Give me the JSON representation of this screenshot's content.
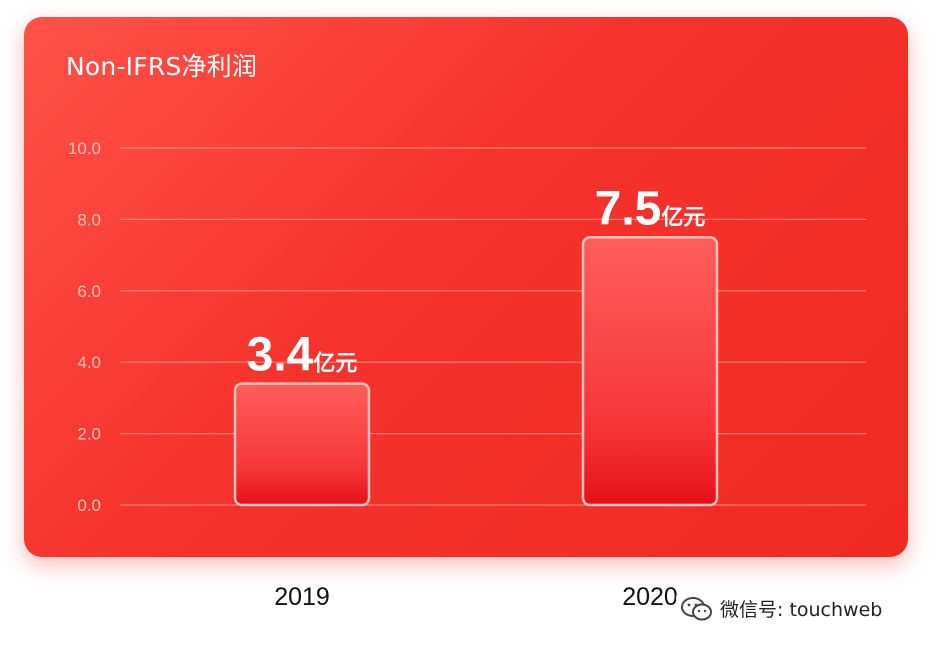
{
  "chart_data": {
    "type": "bar",
    "title": "Non-IFRS净利润",
    "categories": [
      "2019",
      "2020"
    ],
    "values": [
      3.4,
      7.5
    ],
    "value_labels": [
      {
        "number": "3.4",
        "unit": "亿元"
      },
      {
        "number": "7.5",
        "unit": "亿元"
      }
    ],
    "yticks": [
      "0.0",
      "2.0",
      "4.0",
      "6.0",
      "8.0",
      "10.0"
    ],
    "ylim": [
      0,
      10
    ],
    "grid": true,
    "xlabel": "",
    "ylabel": ""
  },
  "watermark": {
    "text": "微信号: touchweb",
    "icon": "wechat-icon"
  },
  "colors": {
    "card": "#f5322c",
    "bar_top": "#ff5a5a",
    "bar_bottom": "#e8141c",
    "bar_border": "#ffc2bd"
  }
}
